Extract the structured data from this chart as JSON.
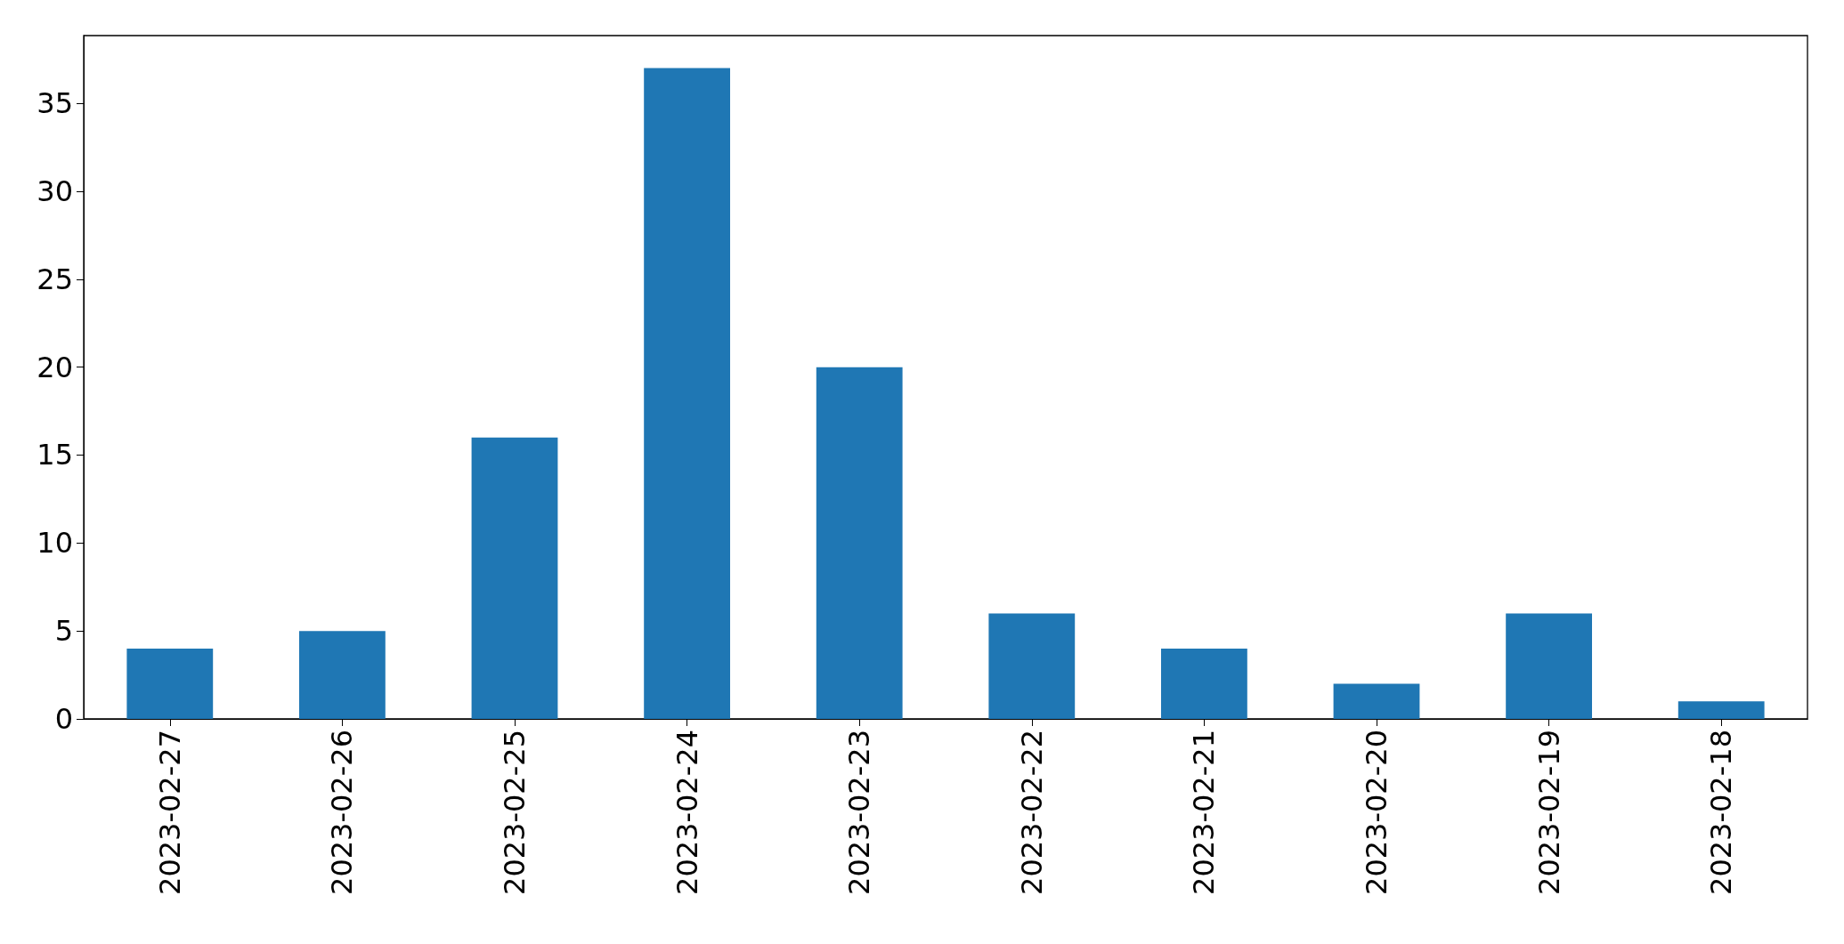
{
  "chart_data": {
    "type": "bar",
    "categories": [
      "2023-02-27",
      "2023-02-26",
      "2023-02-25",
      "2023-02-24",
      "2023-02-23",
      "2023-02-22",
      "2023-02-21",
      "2023-02-20",
      "2023-02-19",
      "2023-02-18"
    ],
    "values": [
      4,
      5,
      16,
      37,
      20,
      6,
      4,
      2,
      6,
      1
    ],
    "color": "#1f77b4",
    "ylim": [
      0,
      38.85
    ],
    "yticks": [
      0,
      5,
      10,
      15,
      20,
      25,
      30,
      35
    ],
    "grid": false
  }
}
